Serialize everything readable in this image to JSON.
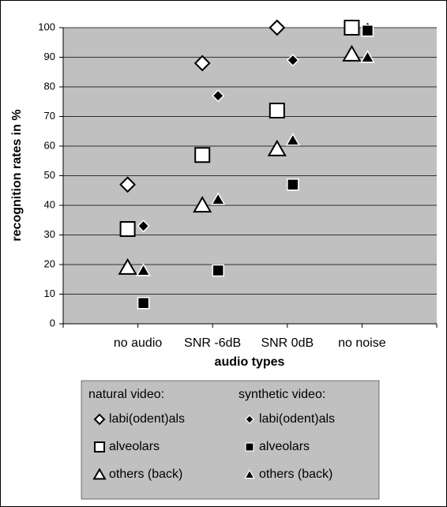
{
  "chart_data": {
    "type": "scatter",
    "x_label": "audio types",
    "y_label": "recognition rates in %",
    "categories": [
      "no audio",
      "SNR -6dB",
      "SNR 0dB",
      "no noise"
    ],
    "ylim": [
      0,
      100
    ],
    "yticks": [
      0,
      10,
      20,
      30,
      40,
      50,
      60,
      70,
      80,
      90,
      100
    ],
    "grid": true,
    "legend": "bottom",
    "series_groups": [
      {
        "name": "natural video:",
        "fill": "#ffffff",
        "series": [
          {
            "name": "labi(odent)als",
            "marker": "diamond",
            "values": [
              47,
              88,
              100,
              100
            ]
          },
          {
            "name": "alveolars",
            "marker": "square",
            "values": [
              32,
              57,
              72,
              100
            ]
          },
          {
            "name": "others (back)",
            "marker": "triangle",
            "values": [
              19,
              40,
              59,
              91
            ]
          }
        ]
      },
      {
        "name": "synthetic video:",
        "fill": "#000000",
        "series": [
          {
            "name": "labi(odent)als",
            "marker": "diamond",
            "values": [
              33,
              77,
              89,
              100
            ]
          },
          {
            "name": "alveolars",
            "marker": "square",
            "values": [
              7,
              18,
              47,
              99
            ]
          },
          {
            "name": "others (back)",
            "marker": "triangle",
            "values": [
              18,
              42,
              62,
              90
            ]
          }
        ]
      }
    ]
  }
}
